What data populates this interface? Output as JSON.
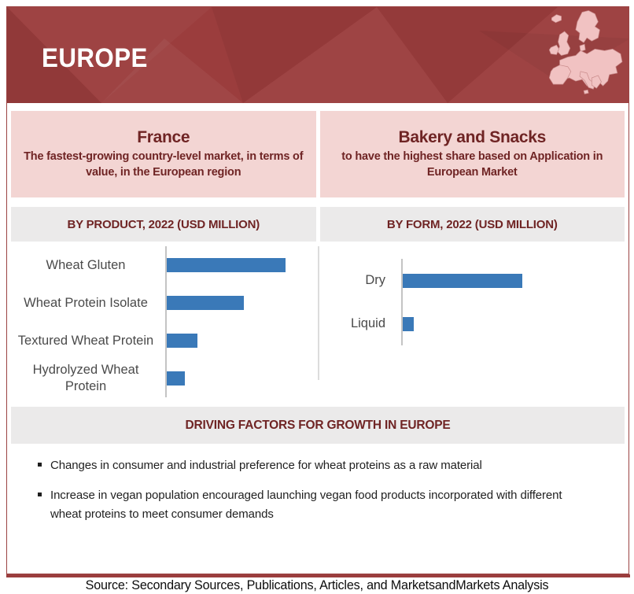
{
  "header": {
    "title": "EUROPE"
  },
  "highlights": [
    {
      "title": "France",
      "subtitle": "The fastest-growing country-level market, in terms of value, in the European  region"
    },
    {
      "title": "Bakery and Snacks",
      "subtitle": "to have the highest share based on Application in European Market"
    }
  ],
  "chart_data": [
    {
      "type": "bar",
      "orientation": "horizontal",
      "title": "BY PRODUCT, 2022 (USD MILLION)",
      "categories": [
        "Wheat Gluten",
        "Wheat Protein Isolate",
        "Textured Wheat Protein",
        "Hydrolyzed Wheat Protein"
      ],
      "values": [
        100,
        65,
        26,
        15
      ],
      "value_scale": "relative, bars unlabeled (largest bar = 100)",
      "bar_color": "#3a79b8",
      "axis": "vertical baseline only, no ticks, no gridlines",
      "legend": "none"
    },
    {
      "type": "bar",
      "orientation": "horizontal",
      "title": "BY FORM, 2022 (USD MILLION)",
      "categories": [
        "Dry",
        "Liquid"
      ],
      "values": [
        100,
        9
      ],
      "value_scale": "relative, bars unlabeled (largest bar = 100)",
      "bar_color": "#3a79b8",
      "axis": "vertical baseline only, no ticks, no gridlines",
      "legend": "none"
    }
  ],
  "driving_factors": {
    "title": "DRIVING FACTORS FOR GROWTH IN EUROPE",
    "bullets": [
      "Changes in consumer and industrial preference for wheat proteins as a raw material",
      "Increase in vegan population encouraged launching vegan food products incorporated with different wheat proteins to meet consumer demands"
    ]
  },
  "source_line": "Source: Secondary Sources, Publications, Articles, and MarketsandMarkets Analysis",
  "colors": {
    "header_maroon": "#9b3d3d",
    "dark_maroon_text": "#6f2424",
    "pink_box": "#f3d5d3",
    "map_pink": "#f1c2c2",
    "gray_band": "#ebeaea",
    "bar_blue": "#3a79b8"
  }
}
